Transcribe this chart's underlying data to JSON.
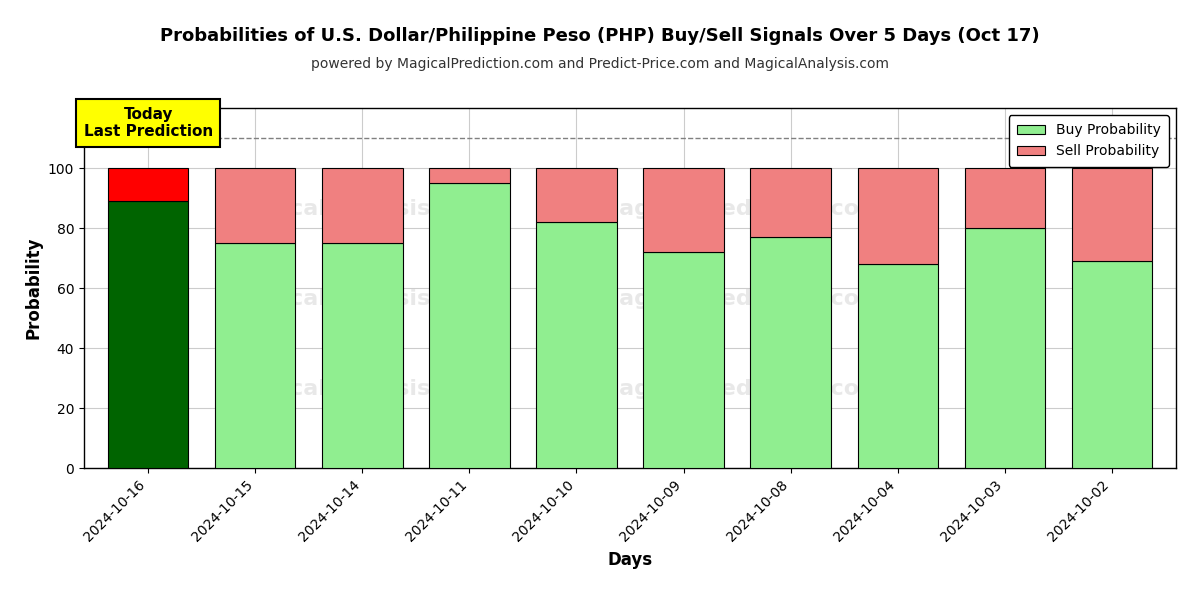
{
  "title": "Probabilities of U.S. Dollar/Philippine Peso (PHP) Buy/Sell Signals Over 5 Days (Oct 17)",
  "subtitle": "powered by MagicalPrediction.com and Predict-Price.com and MagicalAnalysis.com",
  "xlabel": "Days",
  "ylabel": "Probability",
  "dates": [
    "2024-10-16",
    "2024-10-15",
    "2024-10-14",
    "2024-10-11",
    "2024-10-10",
    "2024-10-09",
    "2024-10-08",
    "2024-10-04",
    "2024-10-03",
    "2024-10-02"
  ],
  "buy_values": [
    89,
    75,
    75,
    95,
    82,
    72,
    77,
    68,
    80,
    69
  ],
  "sell_values": [
    11,
    25,
    25,
    5,
    18,
    28,
    23,
    32,
    20,
    31
  ],
  "today_buy_color": "#006400",
  "today_sell_color": "#FF0000",
  "buy_color": "#90EE90",
  "sell_color": "#F08080",
  "today_annotation": "Today\nLast Prediction",
  "today_annotation_bg": "#FFFF00",
  "ylim": [
    0,
    120
  ],
  "dashed_line_y": 110,
  "bar_edge_color": "#000000",
  "legend_buy_label": "Buy Probability",
  "legend_sell_label": "Sell Probability",
  "background_color": "#ffffff",
  "grid_color": "#cccccc",
  "bar_width": 0.75
}
